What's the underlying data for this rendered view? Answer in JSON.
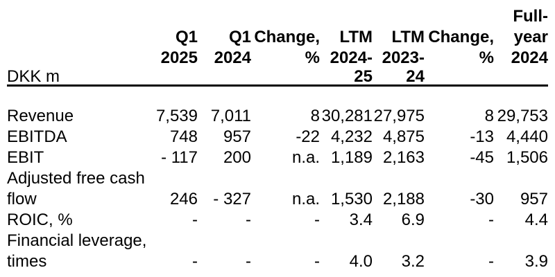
{
  "table": {
    "unit_label": "DKK m",
    "header": {
      "columns": [
        {
          "label": "Q1 2025",
          "lines": [
            "Q1",
            "2025"
          ],
          "sub": ""
        },
        {
          "label": "Q1 2024",
          "lines": [
            "Q1",
            "2024"
          ],
          "sub": ""
        },
        {
          "label": "Change, %",
          "lines": [
            "Change,",
            "%"
          ],
          "sub": ""
        },
        {
          "label": "LTM 2024-25",
          "lines": [
            "LTM",
            "2024-"
          ],
          "sub": "25"
        },
        {
          "label": "LTM 2023-24",
          "lines": [
            "LTM",
            "2023-"
          ],
          "sub": "24"
        },
        {
          "label": "Change, %",
          "lines": [
            "Change,",
            "%"
          ],
          "sub": ""
        },
        {
          "label": "Full-year 2024",
          "lines": [
            "Full-",
            "year",
            "2024"
          ],
          "sub": ""
        }
      ]
    },
    "rows": [
      {
        "label": "Revenue",
        "values": [
          "7,539",
          "7,011",
          "8",
          "30,281",
          "27,975",
          "8",
          "29,753"
        ]
      },
      {
        "label": "EBITDA",
        "values": [
          "748",
          "957",
          "-22",
          "4,232",
          "4,875",
          "-13",
          "4,440"
        ]
      },
      {
        "label": "EBIT",
        "values": [
          "- 117",
          "200",
          "n.a.",
          "1,189",
          "2,163",
          "-45",
          "1,506"
        ]
      },
      {
        "label": "Adjusted free cash flow",
        "values": [
          "246",
          "- 327",
          "n.a.",
          "1,530",
          "2,188",
          "-30",
          "957"
        ]
      },
      {
        "label": "ROIC, %",
        "values": [
          "-",
          "-",
          "-",
          "3.4",
          "6.9",
          "-",
          "4.4"
        ]
      },
      {
        "label": "Financial leverage, times",
        "values": [
          "-",
          "-",
          "-",
          "4.0",
          "3.2",
          "-",
          "3.9"
        ]
      }
    ],
    "colors": {
      "text": "#000000",
      "background": "#ffffff",
      "rule": "#000000"
    }
  }
}
